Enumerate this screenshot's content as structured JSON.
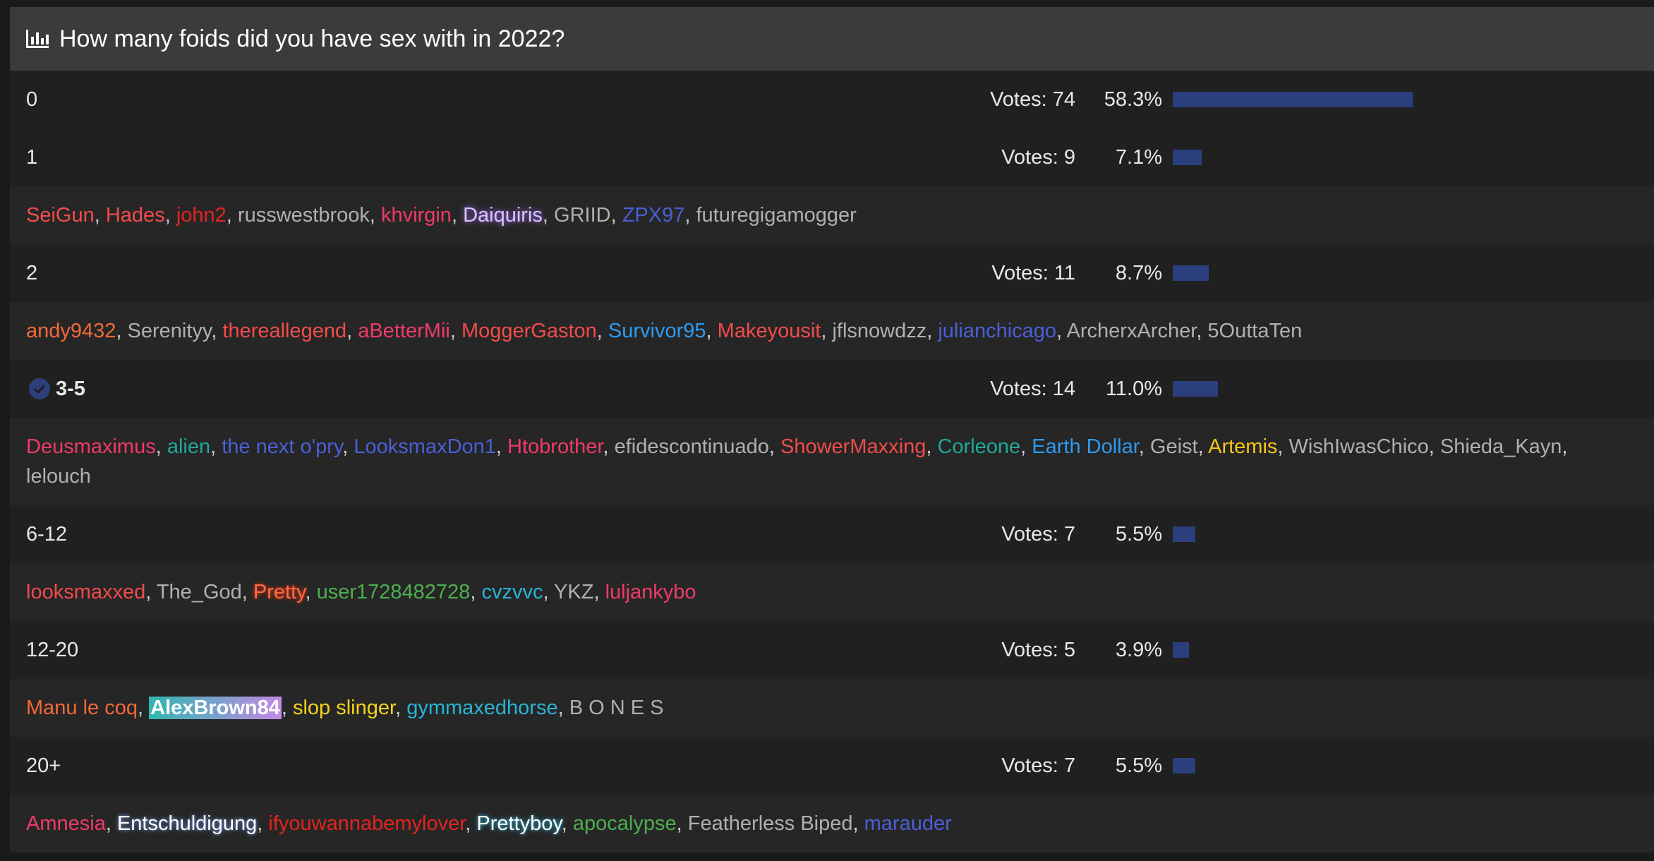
{
  "poll": {
    "title": "How many foids did you have sex with in 2022?",
    "icon": "bar-chart-icon",
    "bar_color": "#2b3f7f",
    "voted_option_index": 3,
    "options": [
      {
        "label": "0",
        "votes": "Votes: 74",
        "pct": "58.3%",
        "fraction": 0.583,
        "voters": []
      },
      {
        "label": "1",
        "votes": "Votes: 9",
        "pct": "7.1%",
        "fraction": 0.071,
        "voters": [
          {
            "name": "SeiGun",
            "color": "#f44b4b"
          },
          {
            "name": "Hades",
            "color": "#f44b4b"
          },
          {
            "name": "john2",
            "color": "#e3241e"
          },
          {
            "name": "russwestbrook",
            "color": "#b0b0b0"
          },
          {
            "name": "khvirgin",
            "color": "#f03a6a"
          },
          {
            "name": "Daiquiris",
            "color": "#d9c4ff",
            "style": "glow-purple"
          },
          {
            "name": "GRIID",
            "color": "#b0b0b0"
          },
          {
            "name": "ZPX97",
            "color": "#4b5fd8"
          },
          {
            "name": "futuregigamogger",
            "color": "#b0b0b0"
          }
        ]
      },
      {
        "label": "2",
        "votes": "Votes: 11",
        "pct": "8.7%",
        "fraction": 0.087,
        "voters": [
          {
            "name": "andy9432",
            "color": "#f4683a"
          },
          {
            "name": "Serenityy",
            "color": "#b0b0b0"
          },
          {
            "name": "thereallegend",
            "color": "#f44b4b"
          },
          {
            "name": "aBetterMii",
            "color": "#f03a6a"
          },
          {
            "name": "MoggerGaston",
            "color": "#f44b4b"
          },
          {
            "name": "Survivor95",
            "color": "#2e9af0"
          },
          {
            "name": "Makeyousit",
            "color": "#f44b4b"
          },
          {
            "name": "jflsnowdzz",
            "color": "#b0b0b0"
          },
          {
            "name": "julianchicago",
            "color": "#4b5fd8"
          },
          {
            "name": "ArcherxArcher",
            "color": "#b0b0b0"
          },
          {
            "name": "5OuttaTen",
            "color": "#b0b0b0"
          }
        ]
      },
      {
        "label": "3-5",
        "votes": "Votes: 14",
        "pct": "11.0%",
        "fraction": 0.11,
        "voters": [
          {
            "name": "Deusmaximus",
            "color": "#f03a6a"
          },
          {
            "name": "alien",
            "color": "#21a89a"
          },
          {
            "name": "the next o'pry",
            "color": "#4b5fd8"
          },
          {
            "name": "LooksmaxDon1",
            "color": "#4b5fd8"
          },
          {
            "name": "Htobrother",
            "color": "#f03a6a"
          },
          {
            "name": "efidescontinuado",
            "color": "#b0b0b0"
          },
          {
            "name": "ShowerMaxxing",
            "color": "#f44b4b"
          },
          {
            "name": "Corleone",
            "color": "#21a89a"
          },
          {
            "name": "Earth Dollar",
            "color": "#2e9af0"
          },
          {
            "name": "Geist",
            "color": "#b0b0b0"
          },
          {
            "name": "Artemis",
            "color": "#f5c518"
          },
          {
            "name": "WishIwasChico",
            "color": "#b0b0b0"
          },
          {
            "name": "Shieda_Kayn",
            "color": "#b0b0b0"
          },
          {
            "name": "lelouch",
            "color": "#b0b0b0"
          }
        ]
      },
      {
        "label": "6-12",
        "votes": "Votes: 7",
        "pct": "5.5%",
        "fraction": 0.055,
        "voters": [
          {
            "name": "looksmaxxed",
            "color": "#f44b4b"
          },
          {
            "name": "The_God",
            "color": "#b0b0b0"
          },
          {
            "name": "Pretty",
            "color": "#ff6a4a",
            "style": "glow-red"
          },
          {
            "name": "user1728482728",
            "color": "#4caf50"
          },
          {
            "name": "cvzvvc",
            "color": "#26b5d6"
          },
          {
            "name": "YKZ",
            "color": "#b0b0b0"
          },
          {
            "name": "luljankybo",
            "color": "#f03a6a"
          }
        ]
      },
      {
        "label": "12-20",
        "votes": "Votes: 5",
        "pct": "3.9%",
        "fraction": 0.039,
        "voters": [
          {
            "name": "Manu le coq",
            "color": "#f4683a"
          },
          {
            "name": "AlexBrown84",
            "color": "#ffffff",
            "style": "hl-gradient"
          },
          {
            "name": "slop slinger",
            "color": "#f5d318"
          },
          {
            "name": "gymmaxedhorse",
            "color": "#26b5d6"
          },
          {
            "name": "B O N E S",
            "color": "#b0b0b0"
          }
        ]
      },
      {
        "label": "20+",
        "votes": "Votes: 7",
        "pct": "5.5%",
        "fraction": 0.055,
        "voters": [
          {
            "name": "Amnesia",
            "color": "#f03a6a"
          },
          {
            "name": "Entschuldigung",
            "color": "#ffffff",
            "style": "glow-white"
          },
          {
            "name": "ifyouwannabemylover",
            "color": "#e3241e"
          },
          {
            "name": "Prettyboy",
            "color": "#ffffff",
            "style": "glow-cyan"
          },
          {
            "name": "apocalypse",
            "color": "#4caf50"
          },
          {
            "name": "Featherless Biped",
            "color": "#b0b0b0"
          },
          {
            "name": "marauder",
            "color": "#4b5fd8"
          }
        ]
      }
    ]
  }
}
